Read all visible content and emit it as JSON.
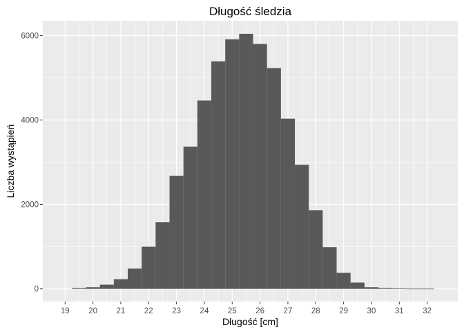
{
  "chart_data": {
    "type": "bar",
    "title": "Długość śledzia",
    "xlabel": "Długość [cm]",
    "ylabel": "Liczba wystąpień",
    "x_ticks": [
      "19",
      "20",
      "21",
      "22",
      "23",
      "24",
      "25",
      "26",
      "27",
      "28",
      "29",
      "30",
      "31",
      "32"
    ],
    "y_ticks": [
      "0",
      "2000",
      "4000",
      "6000"
    ],
    "xlim": [
      18.2,
      33.1
    ],
    "ylim": [
      -300,
      6350
    ],
    "bin_width": 0.5,
    "bins": [
      {
        "x": 19.5,
        "value": 20
      },
      {
        "x": 20.0,
        "value": 40
      },
      {
        "x": 20.5,
        "value": 100
      },
      {
        "x": 21.0,
        "value": 230
      },
      {
        "x": 21.5,
        "value": 480
      },
      {
        "x": 22.0,
        "value": 1000
      },
      {
        "x": 22.5,
        "value": 1580
      },
      {
        "x": 23.0,
        "value": 2680
      },
      {
        "x": 23.5,
        "value": 3370
      },
      {
        "x": 24.0,
        "value": 4460
      },
      {
        "x": 24.5,
        "value": 5390
      },
      {
        "x": 25.0,
        "value": 5910
      },
      {
        "x": 25.5,
        "value": 6040
      },
      {
        "x": 26.0,
        "value": 5800
      },
      {
        "x": 26.5,
        "value": 5230
      },
      {
        "x": 27.0,
        "value": 4030
      },
      {
        "x": 27.5,
        "value": 2940
      },
      {
        "x": 28.0,
        "value": 1860
      },
      {
        "x": 28.5,
        "value": 990
      },
      {
        "x": 29.0,
        "value": 380
      },
      {
        "x": 29.5,
        "value": 150
      },
      {
        "x": 30.0,
        "value": 40
      },
      {
        "x": 30.5,
        "value": 20
      },
      {
        "x": 31.0,
        "value": 10
      },
      {
        "x": 31.5,
        "value": 5
      },
      {
        "x": 32.0,
        "value": 5
      }
    ],
    "grid": true,
    "legend": "none",
    "colors": {
      "panel": "#ebebeb",
      "grid_major": "#ffffff",
      "bar": "#595959"
    }
  }
}
